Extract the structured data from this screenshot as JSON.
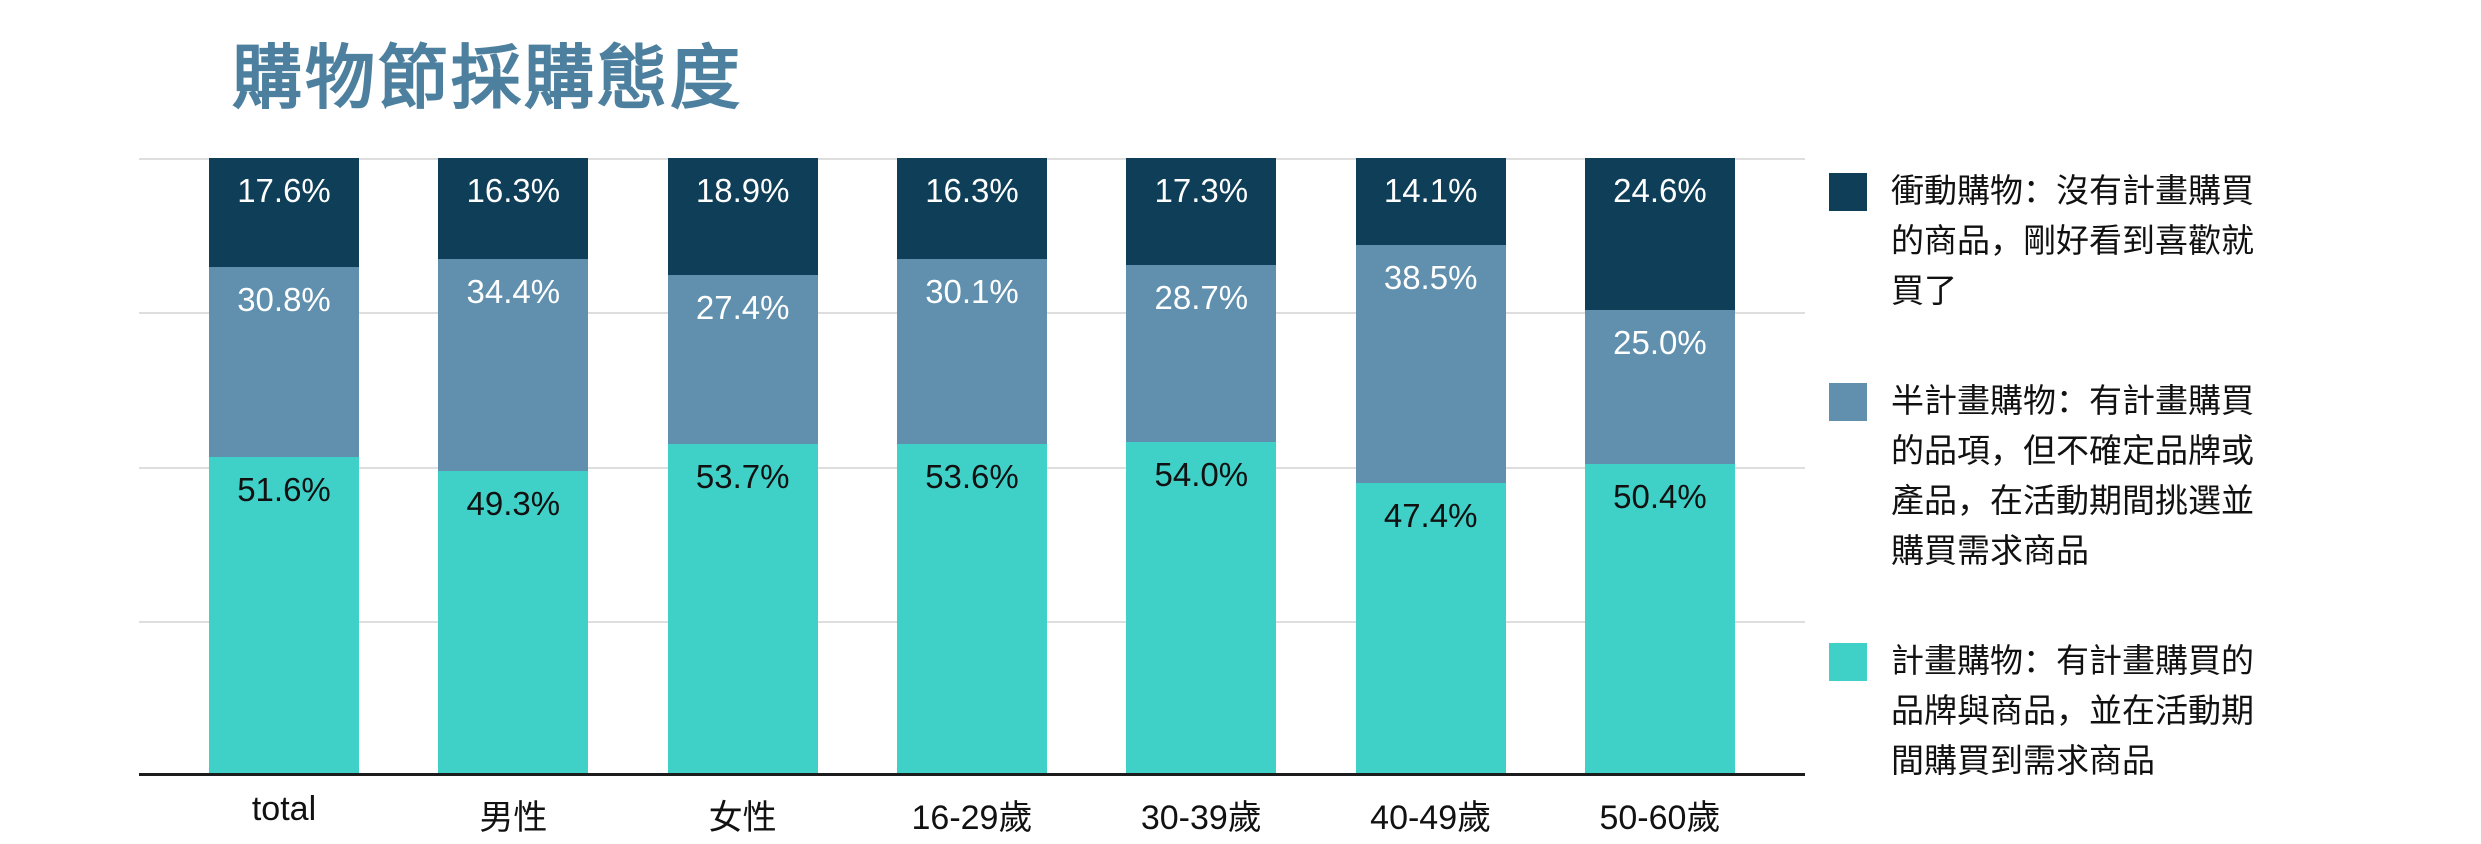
{
  "title": "購物節採購態度",
  "colors": {
    "title": "#4d7f9f",
    "impulse": "#0e3e58",
    "semi": "#6090ae",
    "planned": "#3fd0c8",
    "gridline": "#dedede",
    "baseline": "#1c1c1c"
  },
  "chart_data": {
    "type": "bar",
    "stacked": true,
    "unit": "%",
    "title": "購物節採購態度",
    "categories": [
      "total",
      "男性",
      "女性",
      "16-29歲",
      "30-39歲",
      "40-49歲",
      "50-60歲"
    ],
    "series": [
      {
        "name": "衝動購物",
        "color_key": "impulse",
        "label_color": "#ffffff",
        "values": [
          17.6,
          16.3,
          18.9,
          16.3,
          17.3,
          14.1,
          24.6
        ]
      },
      {
        "name": "半計畫購物",
        "color_key": "semi",
        "label_color": "#ffffff",
        "values": [
          30.8,
          34.4,
          27.4,
          30.1,
          28.7,
          38.5,
          25.0
        ]
      },
      {
        "name": "計畫購物",
        "color_key": "planned",
        "label_color": "#111111",
        "values": [
          51.6,
          49.3,
          53.7,
          53.6,
          54.0,
          47.4,
          50.4
        ]
      }
    ],
    "ylim": [
      0,
      100
    ],
    "gridlines_percent": [
      100,
      75,
      50,
      25
    ],
    "grid": true,
    "legend_position": "right"
  },
  "legend": {
    "items": [
      {
        "label": "衝動購物：沒有計畫購買的商品，剛好看到喜歡就買了",
        "color_key": "impulse"
      },
      {
        "label": "半計畫購物：有計畫購買的品項，但不確定品牌或產品，在活動期間挑選並購買需求商品",
        "color_key": "semi"
      },
      {
        "label": "計畫購物：有計畫購買的品牌與商品，並在活動期間購買到需求商品",
        "color_key": "planned"
      }
    ]
  }
}
